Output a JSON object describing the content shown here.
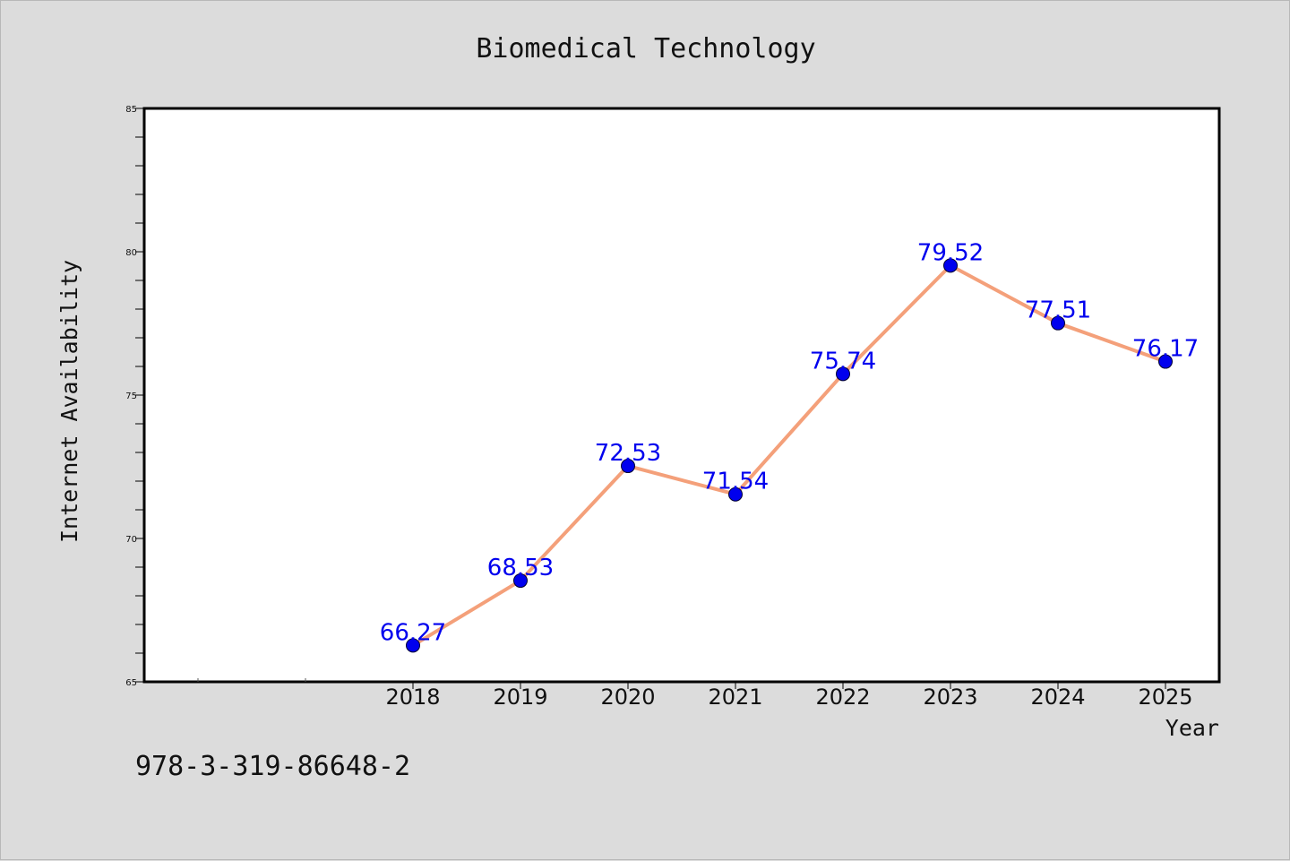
{
  "chart_data": {
    "type": "line",
    "title": "Biomedical Technology",
    "xlabel": "Year",
    "ylabel": "Internet Availability",
    "categories": [
      "2018",
      "2019",
      "2020",
      "2021",
      "2022",
      "2023",
      "2024",
      "2025"
    ],
    "series": [
      {
        "values": [
          66.27,
          68.53,
          72.53,
          71.54,
          75.74,
          79.52,
          77.51,
          76.17
        ],
        "data_labels": [
          "66.27",
          "68.53",
          "72.53",
          "71.54",
          "75.74",
          "79.52",
          "77.51",
          "76.17"
        ]
      }
    ],
    "ylim": [
      65,
      85
    ],
    "yticks": [
      65,
      70,
      75,
      80,
      85
    ],
    "yticks_labels": [
      "65",
      "70",
      "75",
      "80",
      "85"
    ],
    "grid": false,
    "colors": {
      "line": "#f4a07a",
      "marker": "#0000ee",
      "data_label": "#0000ee",
      "plot_background": "#ffffff",
      "page_background": "#dcdcdc"
    }
  },
  "footnote": "978-3-319-86648-2"
}
